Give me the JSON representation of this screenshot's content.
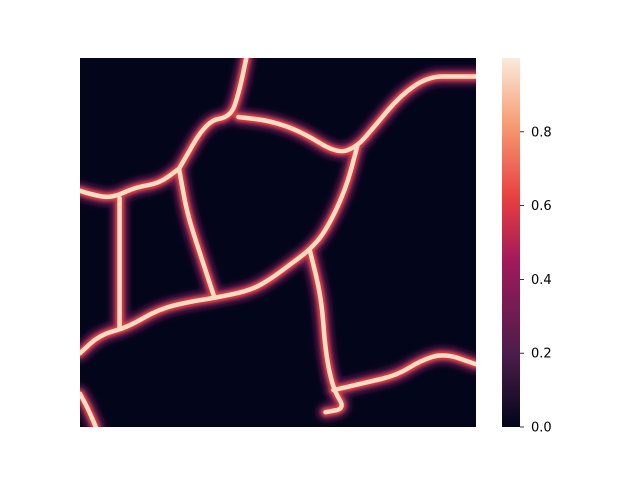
{
  "chart_data": {
    "type": "heatmap",
    "title": "",
    "xlabel": "",
    "ylabel": "",
    "x_ticks_visible": false,
    "y_ticks_visible": false,
    "colormap": "rocket",
    "colorbar": {
      "range": [
        0.0,
        1.0
      ],
      "ticks": [
        0.0,
        0.2,
        0.4,
        0.6,
        0.8
      ],
      "tick_labels": [
        "0.0",
        "0.2",
        "0.4",
        "0.6",
        "0.8"
      ],
      "colors": [
        "#03051a",
        "#4c1d4b",
        "#a11a5b",
        "#e83f3f",
        "#f69c73",
        "#faebdd"
      ]
    },
    "description_values": {
      "background": 0.0,
      "ridges": 0.95
    },
    "ridge_paths": [
      [
        [
          0.0,
          0.36
        ],
        [
          0.03,
          0.37
        ],
        [
          0.08,
          0.38
        ],
        [
          0.14,
          0.35
        ],
        [
          0.2,
          0.34
        ],
        [
          0.25,
          0.3
        ]
      ],
      [
        [
          0.25,
          0.3
        ],
        [
          0.32,
          0.17
        ],
        [
          0.38,
          0.16
        ],
        [
          0.4,
          0.1
        ],
        [
          0.42,
          0.0
        ]
      ],
      [
        [
          0.4,
          0.16
        ],
        [
          0.48,
          0.17
        ],
        [
          0.56,
          0.2
        ],
        [
          0.65,
          0.26
        ],
        [
          0.7,
          0.24
        ],
        [
          0.74,
          0.19
        ],
        [
          0.81,
          0.1
        ],
        [
          0.88,
          0.05
        ],
        [
          0.95,
          0.05
        ],
        [
          1.0,
          0.05
        ]
      ],
      [
        [
          0.7,
          0.24
        ],
        [
          0.67,
          0.36
        ],
        [
          0.62,
          0.47
        ],
        [
          0.58,
          0.52
        ],
        [
          0.53,
          0.56
        ],
        [
          0.48,
          0.6
        ],
        [
          0.43,
          0.63
        ],
        [
          0.34,
          0.65
        ],
        [
          0.28,
          0.66
        ],
        [
          0.2,
          0.68
        ],
        [
          0.12,
          0.73
        ],
        [
          0.05,
          0.75
        ],
        [
          0.0,
          0.8
        ]
      ],
      [
        [
          0.25,
          0.3
        ],
        [
          0.27,
          0.42
        ],
        [
          0.3,
          0.52
        ],
        [
          0.34,
          0.65
        ]
      ],
      [
        [
          0.1,
          0.38
        ],
        [
          0.1,
          0.52
        ],
        [
          0.1,
          0.63
        ],
        [
          0.1,
          0.73
        ]
      ],
      [
        [
          0.58,
          0.52
        ],
        [
          0.61,
          0.65
        ],
        [
          0.62,
          0.8
        ],
        [
          0.64,
          0.9
        ],
        [
          0.67,
          0.95
        ],
        [
          0.62,
          0.96
        ]
      ],
      [
        [
          0.64,
          0.9
        ],
        [
          0.72,
          0.88
        ],
        [
          0.8,
          0.86
        ],
        [
          0.86,
          0.82
        ],
        [
          0.92,
          0.8
        ],
        [
          1.0,
          0.83
        ]
      ],
      [
        [
          0.0,
          0.91
        ],
        [
          0.02,
          0.95
        ],
        [
          0.04,
          1.0
        ]
      ]
    ]
  }
}
